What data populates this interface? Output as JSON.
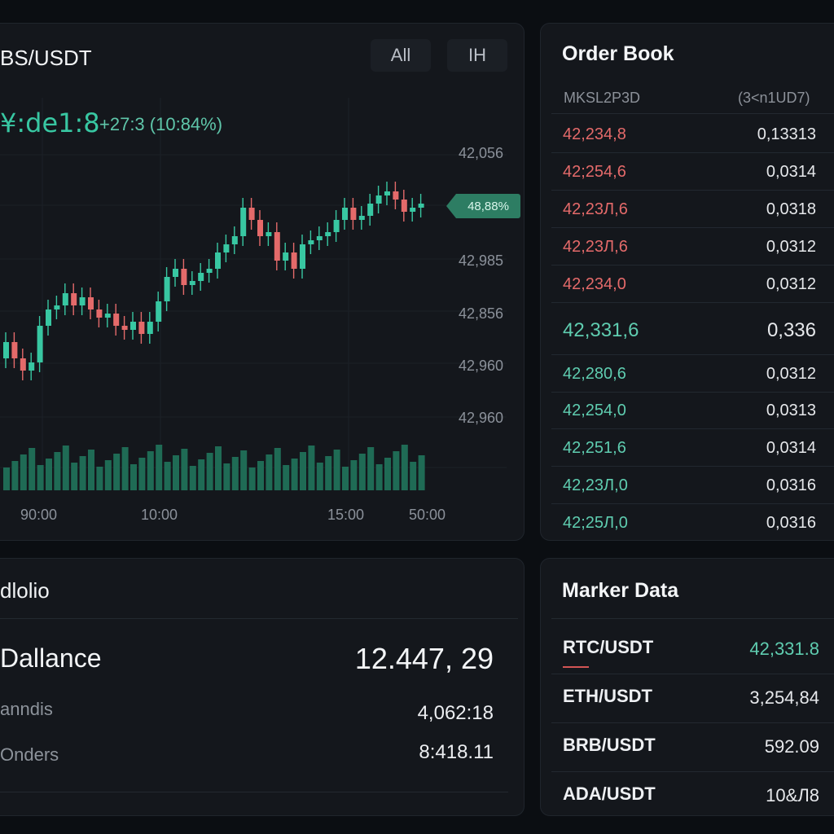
{
  "chart_panel": {
    "pair_title": "BS/USDT",
    "timeframes": [
      "All",
      "IH"
    ],
    "price": "¥:de1:8",
    "change": "+27:3 (10:84%)",
    "price_tag": "48,88%",
    "y_labels": [
      "42,056",
      "42,985",
      "42,856",
      "42,960",
      "42,960"
    ],
    "x_labels": [
      "90:00",
      "10:00",
      "15:00",
      "50:00"
    ]
  },
  "order_book": {
    "title": "Order Book",
    "header_price": "MKSL2P3D",
    "header_amount": "(3<n1UD7)",
    "asks": [
      {
        "price": "42,234,8",
        "amount": "0,13313"
      },
      {
        "price": "42;254,6",
        "amount": "0,0314"
      },
      {
        "price": "42,23Л,6",
        "amount": "0,0318"
      },
      {
        "price": "42,23Л,6",
        "amount": "0,0312"
      },
      {
        "price": "42,234,0",
        "amount": "0,0312"
      }
    ],
    "mid": {
      "price": "42,331,6",
      "amount": "0,336"
    },
    "bids": [
      {
        "price": "42,280,6",
        "amount": "0,0312"
      },
      {
        "price": "42,254,0",
        "amount": "0,0313"
      },
      {
        "price": "42,251,6",
        "amount": "0,0314"
      },
      {
        "price": "42,23Л,0",
        "amount": "0,0316"
      },
      {
        "price": "42;25Л,0",
        "amount": "0,0316"
      }
    ]
  },
  "portfolio": {
    "title": "dlolio",
    "balance_label": "Dallance",
    "balance_value": "12.447, 29",
    "row1_label": "anndis",
    "row1_value": "4,062:18",
    "row2_label": "Onders",
    "row2_value": "8:418.11"
  },
  "market_data": {
    "title": "Marker Data",
    "items": [
      {
        "pair": "RTC/USDT",
        "price": "42,331.8"
      },
      {
        "pair": "ETH/USDT",
        "price": "3,254,84"
      },
      {
        "pair": "BRB/USDT",
        "price": "592.09"
      },
      {
        "pair": "ADA/USDT",
        "price": "10&Л8"
      }
    ]
  },
  "colors": {
    "up": "#38c7a2",
    "down": "#e46a6a",
    "volume": "#1f6b55"
  }
}
